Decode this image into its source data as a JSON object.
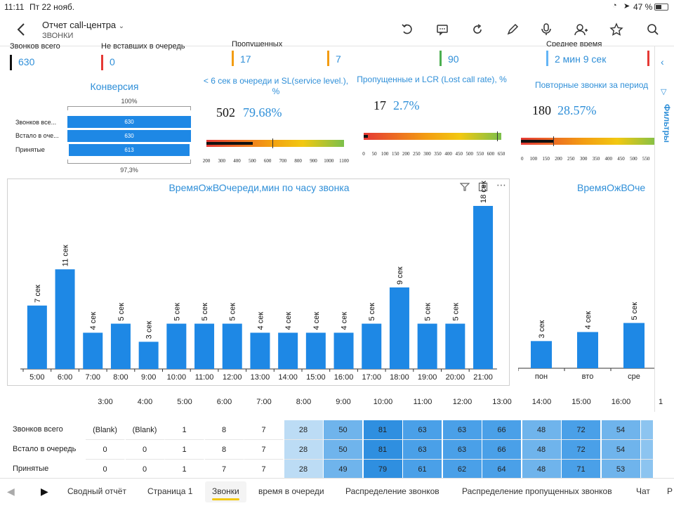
{
  "status_bar": {
    "time": "11:11",
    "date": "Пт 22 нояб.",
    "battery": "47 %"
  },
  "header": {
    "title": "Отчет call-центра",
    "subtitle": "ЗВОНКИ"
  },
  "kpis": [
    {
      "label": "Звонков всего",
      "value": "630",
      "color": "#111111"
    },
    {
      "label": "Не вставших в очередь",
      "value": "0",
      "color": "#e53935"
    },
    {
      "label": "Пропущенных",
      "value": "17",
      "color": "#f39c12"
    },
    {
      "label": "",
      "value": "7",
      "color": "#f39c12"
    },
    {
      "label": "",
      "value": "90",
      "color": "#4caf50"
    },
    {
      "label": "Среднее время",
      "value": "2 мин 9 сек",
      "color": "#64b5f6"
    }
  ],
  "conversion": {
    "title": "Конверсия",
    "top_pct": "100%",
    "bottom_pct": "97,3%",
    "rows": [
      {
        "label": "Звонков все...",
        "value": "630",
        "fraction": 1.0
      },
      {
        "label": "Встало в оче...",
        "value": "630",
        "fraction": 1.0
      },
      {
        "label": "Принятые",
        "value": "613",
        "fraction": 0.973
      }
    ]
  },
  "gauges": [
    {
      "title": "< 6 сек в очереди и SL(service level.), %",
      "count": "502",
      "pct": "79.68%",
      "ticks": [
        "200",
        "300",
        "400",
        "500",
        "600",
        "700",
        "800",
        "900",
        "1000",
        "1100"
      ],
      "min": 200,
      "max": 1100,
      "value": 502,
      "target": 630
    },
    {
      "title": "Пропущенные и LCR (Lost call rate), %",
      "count": "17",
      "pct": "2.7%",
      "ticks": [
        "0",
        "50",
        "100",
        "150",
        "200",
        "250",
        "300",
        "350",
        "400",
        "450",
        "500",
        "550",
        "600",
        "650"
      ],
      "min": 0,
      "max": 650,
      "value": 17,
      "target": 630
    },
    {
      "title": "Повторные звонки за период",
      "count": "180",
      "pct": "28.57%",
      "ticks": [
        "50",
        "100",
        "150",
        "200",
        "250",
        "300",
        "350",
        "400",
        "450",
        "500",
        "550",
        "600"
      ],
      "min": 50,
      "max": 600,
      "value": 180,
      "target": 180
    }
  ],
  "chart_data": [
    {
      "type": "bar",
      "title": "ВремяОжВОчереди,мин по часу звонка",
      "categories": [
        "5:00",
        "6:00",
        "7:00",
        "8:00",
        "9:00",
        "10:00",
        "11:00",
        "12:00",
        "13:00",
        "14:00",
        "15:00",
        "16:00",
        "17:00",
        "18:00",
        "19:00",
        "20:00",
        "21:00"
      ],
      "values": [
        7,
        11,
        4,
        5,
        3,
        5,
        5,
        5,
        4,
        4,
        4,
        4,
        5,
        9,
        5,
        5,
        18
      ],
      "labels": [
        "7 сек",
        "11 сек",
        "4 сек",
        "5 сек",
        "3 сек",
        "5 сек",
        "5 сек",
        "5 сек",
        "4 сек",
        "4 сек",
        "4 сек",
        "4 сек",
        "5 сек",
        "9 сек",
        "5 сек",
        "5 сек",
        "18 сек"
      ],
      "color": "#1e88e5"
    },
    {
      "type": "bar",
      "title": "ВремяОжВОче",
      "categories": [
        "пон",
        "вто",
        "сре"
      ],
      "values": [
        3,
        4,
        5
      ],
      "labels": [
        "3 сек",
        "4 сек",
        "5 сек"
      ],
      "color": "#1e88e5"
    }
  ],
  "table": {
    "hours": [
      "3:00",
      "4:00",
      "5:00",
      "6:00",
      "7:00",
      "8:00",
      "9:00",
      "10:00",
      "11:00",
      "12:00",
      "13:00",
      "14:00",
      "15:00",
      "16:00",
      "1"
    ],
    "rows": [
      {
        "label": "Звонков всего",
        "cells": [
          "(Blank)",
          "(Blank)",
          "1",
          "8",
          "7",
          "28",
          "50",
          "81",
          "63",
          "63",
          "66",
          "48",
          "72",
          "54",
          ""
        ]
      },
      {
        "label": "Встало в очередь",
        "cells": [
          "0",
          "0",
          "1",
          "8",
          "7",
          "28",
          "50",
          "81",
          "63",
          "63",
          "66",
          "48",
          "72",
          "54",
          ""
        ]
      },
      {
        "label": "Принятые",
        "cells": [
          "0",
          "0",
          "1",
          "7",
          "7",
          "28",
          "49",
          "79",
          "61",
          "62",
          "64",
          "48",
          "71",
          "53",
          ""
        ]
      }
    ]
  },
  "tabs": [
    {
      "label": "Сводный отчёт",
      "active": false
    },
    {
      "label": "Страница 1",
      "active": false
    },
    {
      "label": "Звонки",
      "active": true
    },
    {
      "label": "время в очереди",
      "active": false
    },
    {
      "label": "Распределение звонков",
      "active": false
    },
    {
      "label": "Распределение пропущенных звонков",
      "active": false
    },
    {
      "label": "Чат",
      "active": false
    },
    {
      "label": "Р",
      "active": false
    }
  ],
  "filters_label": "Фильтры"
}
